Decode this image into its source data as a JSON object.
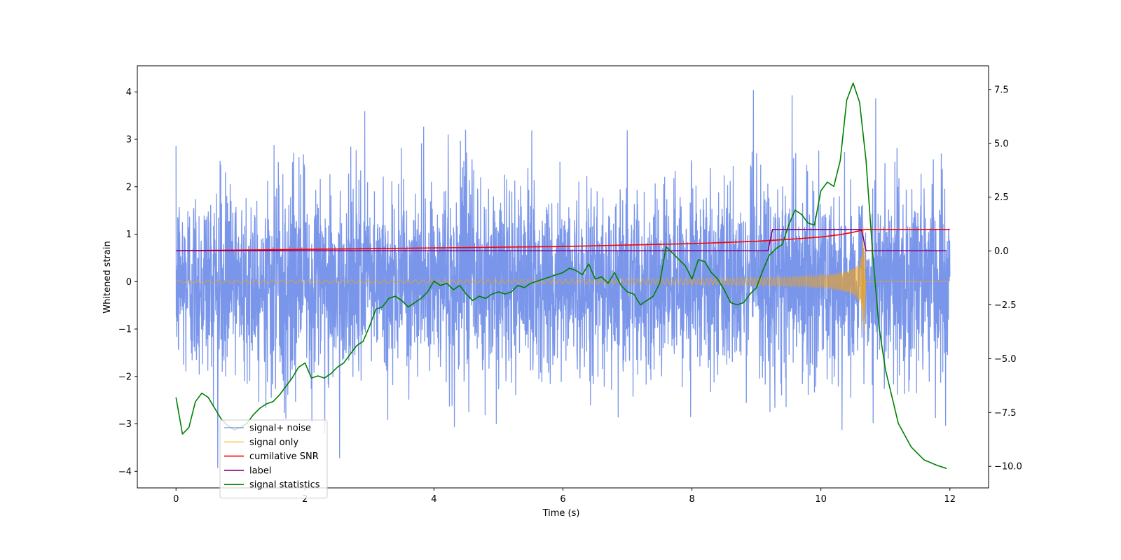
{
  "chart_data": {
    "type": "line",
    "xlabel": "Time (s)",
    "ylabel": "Whitened strain",
    "xlim": [
      -0.6,
      12.6
    ],
    "ylim": [
      -4.35,
      4.55
    ],
    "y2lim": [
      -11.0,
      8.6
    ],
    "x_ticks": [
      0,
      2,
      4,
      6,
      8,
      10,
      12
    ],
    "y_ticks": [
      -4,
      -3,
      -2,
      -1,
      0,
      1,
      2,
      3,
      4
    ],
    "y2_ticks": [
      -10.0,
      -7.5,
      -5.0,
      -2.5,
      0.0,
      2.5,
      5.0,
      7.5
    ],
    "x_tick_labels": [
      "0",
      "2",
      "4",
      "6",
      "8",
      "10",
      "12"
    ],
    "y_tick_labels": [
      "−4",
      "−3",
      "−2",
      "−1",
      "0",
      "1",
      "2",
      "3",
      "4"
    ],
    "y2_tick_labels": [
      "−10.0",
      "−7.5",
      "−5.0",
      "−2.5",
      "0.0",
      "2.5",
      "5.0",
      "7.5"
    ],
    "grid": false,
    "legend_position": "lower-left",
    "merger_time": 10.68,
    "series": [
      {
        "name": "signal+ noise",
        "axis": "left",
        "color": "#4169e1",
        "kind": "noise",
        "x_range": [
          0,
          12
        ],
        "band_low": -2.4,
        "band_high": 2.5,
        "peak_max": 4.18,
        "peak_min": -3.95
      },
      {
        "name": "signal only",
        "axis": "left",
        "color": "#ffa500",
        "kind": "chirp",
        "x_range": [
          0,
          12
        ],
        "amplitude_start": 0.03,
        "amplitude_peak": 1.25,
        "amplitude_trough": -0.95
      },
      {
        "name": "cumilative SNR",
        "axis": "left",
        "color": "#ff0000",
        "x": [
          0,
          2,
          4,
          6,
          7,
          8,
          9,
          9.5,
          10,
          10.3,
          10.5,
          10.68,
          12
        ],
        "y": [
          0.65,
          0.68,
          0.71,
          0.74,
          0.77,
          0.8,
          0.85,
          0.89,
          0.94,
          0.99,
          1.04,
          1.1,
          1.1
        ]
      },
      {
        "name": "label",
        "axis": "left",
        "color": "#800080",
        "x": [
          0,
          9.18,
          9.25,
          10.63,
          10.7,
          11.95
        ],
        "y": [
          0.65,
          0.65,
          1.1,
          1.1,
          0.65,
          0.65
        ]
      },
      {
        "name": "signal statistics",
        "axis": "right",
        "color": "#008000",
        "x": [
          0,
          0.1,
          0.2,
          0.3,
          0.4,
          0.5,
          0.6,
          0.7,
          0.8,
          0.9,
          1.0,
          1.1,
          1.2,
          1.3,
          1.4,
          1.5,
          1.6,
          1.7,
          1.8,
          1.9,
          2.0,
          2.1,
          2.2,
          2.3,
          2.4,
          2.5,
          2.6,
          2.7,
          2.8,
          2.9,
          3.0,
          3.1,
          3.2,
          3.3,
          3.4,
          3.5,
          3.6,
          3.7,
          3.8,
          3.9,
          4.0,
          4.1,
          4.2,
          4.3,
          4.4,
          4.5,
          4.6,
          4.7,
          4.8,
          4.9,
          5.0,
          5.1,
          5.2,
          5.3,
          5.4,
          5.5,
          5.6,
          5.7,
          5.8,
          5.9,
          6.0,
          6.1,
          6.2,
          6.3,
          6.4,
          6.5,
          6.6,
          6.7,
          6.8,
          6.9,
          7.0,
          7.1,
          7.2,
          7.3,
          7.4,
          7.5,
          7.6,
          7.7,
          7.8,
          7.9,
          8.0,
          8.1,
          8.2,
          8.3,
          8.4,
          8.5,
          8.6,
          8.7,
          8.8,
          8.9,
          9.0,
          9.1,
          9.2,
          9.3,
          9.4,
          9.5,
          9.6,
          9.7,
          9.8,
          9.9,
          10.0,
          10.1,
          10.2,
          10.3,
          10.4,
          10.5,
          10.6,
          10.7,
          10.8,
          10.9,
          11.0,
          11.2,
          11.4,
          11.6,
          11.8,
          11.95
        ],
        "y": [
          -6.8,
          -8.5,
          -8.2,
          -7.0,
          -6.6,
          -6.8,
          -7.3,
          -7.8,
          -8.1,
          -8.3,
          -8.2,
          -8.0,
          -7.6,
          -7.3,
          -7.1,
          -7.0,
          -6.7,
          -6.3,
          -5.9,
          -5.4,
          -5.2,
          -5.9,
          -5.8,
          -5.9,
          -5.7,
          -5.4,
          -5.2,
          -4.8,
          -4.4,
          -4.2,
          -3.5,
          -2.7,
          -2.6,
          -2.2,
          -2.1,
          -2.3,
          -2.6,
          -2.4,
          -2.2,
          -1.9,
          -1.4,
          -1.6,
          -1.5,
          -1.8,
          -1.6,
          -2.0,
          -2.3,
          -2.1,
          -2.2,
          -2.0,
          -1.9,
          -2.0,
          -1.9,
          -1.6,
          -1.7,
          -1.5,
          -1.4,
          -1.3,
          -1.2,
          -1.1,
          -1.0,
          -0.8,
          -0.9,
          -1.1,
          -0.6,
          -1.3,
          -1.2,
          -1.5,
          -1.0,
          -1.6,
          -1.9,
          -2.0,
          -2.5,
          -2.3,
          -2.1,
          -1.5,
          0.2,
          -0.1,
          -0.4,
          -0.7,
          -1.3,
          -0.4,
          -0.5,
          -1.0,
          -1.3,
          -1.8,
          -2.4,
          -2.5,
          -2.4,
          -2.0,
          -1.7,
          -0.9,
          -0.2,
          0.1,
          0.3,
          1.2,
          1.9,
          1.7,
          1.3,
          1.2,
          2.8,
          3.2,
          3.0,
          4.2,
          7.0,
          7.8,
          6.9,
          4.2,
          0.0,
          -3.5,
          -5.5,
          -8.0,
          -9.1,
          -9.7,
          -9.95,
          -10.1
        ]
      }
    ]
  }
}
